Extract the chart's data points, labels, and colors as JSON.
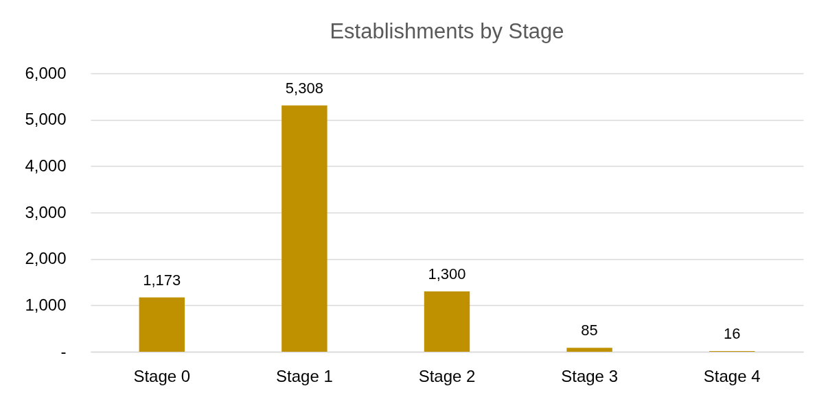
{
  "chart_data": {
    "type": "bar",
    "title": "Establishments by Stage",
    "categories": [
      "Stage 0",
      "Stage 1",
      "Stage 2",
      "Stage 3",
      "Stage 4"
    ],
    "values": [
      1173,
      5308,
      1300,
      85,
      16
    ],
    "color": "#bf9000",
    "value_labels": [
      "1,173",
      "5,308",
      "1,300",
      "85",
      "16"
    ],
    "ylim": [
      0,
      6000
    ],
    "yticks": [
      {
        "value": 0,
        "label": "-"
      },
      {
        "value": 1000,
        "label": "1,000"
      },
      {
        "value": 2000,
        "label": "2,000"
      },
      {
        "value": 3000,
        "label": "3,000"
      },
      {
        "value": 4000,
        "label": "4,000"
      },
      {
        "value": 5000,
        "label": "5,000"
      },
      {
        "value": 6000,
        "label": "6,000"
      }
    ],
    "grid": "y"
  }
}
